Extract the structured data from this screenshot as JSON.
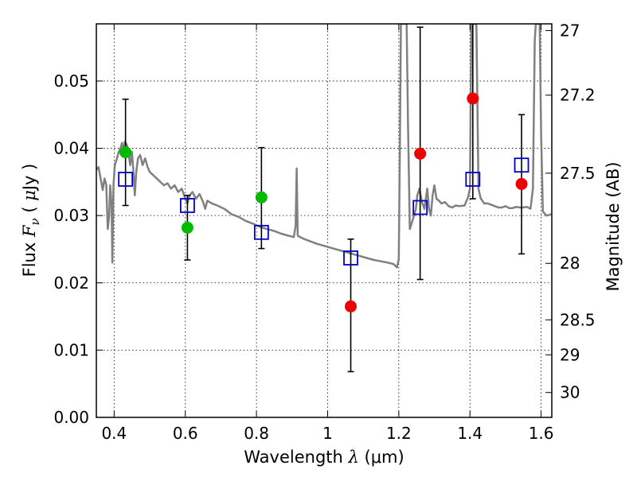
{
  "chart_data": {
    "type": "scatter",
    "title": "",
    "xlabel": "Wavelength  λ (μm)",
    "xlabel_parts": {
      "prefix": "Wavelength  ",
      "symbol": "λ",
      "unit": " (μm)"
    },
    "ylabel": "Flux  Fν  ( μJy )",
    "ylabel_parts": {
      "prefix": "Flux  ",
      "symbol": "F",
      "sub": "ν",
      "open": "  ( ",
      "mu": "μ",
      "unit": "Jy )"
    },
    "y2label": "Magnitude (AB)",
    "xlim": [
      0.35,
      1.63
    ],
    "ylim": [
      0.0,
      0.0585
    ],
    "grid": true,
    "xticks": [
      {
        "value": 0.4,
        "label": "0.4"
      },
      {
        "value": 0.6,
        "label": "0.6"
      },
      {
        "value": 0.8,
        "label": "0.8"
      },
      {
        "value": 1.0,
        "label": "1"
      },
      {
        "value": 1.2,
        "label": "1.2"
      },
      {
        "value": 1.4,
        "label": "1.4"
      },
      {
        "value": 1.6,
        "label": "1.6"
      }
    ],
    "yticks": [
      {
        "value": 0.0,
        "label": "0.00"
      },
      {
        "value": 0.01,
        "label": "0.01"
      },
      {
        "value": 0.02,
        "label": "0.02"
      },
      {
        "value": 0.03,
        "label": "0.03"
      },
      {
        "value": 0.04,
        "label": "0.04"
      },
      {
        "value": 0.05,
        "label": "0.05"
      }
    ],
    "y2ticks": [
      {
        "label": "27",
        "flux": 0.0575
      },
      {
        "label": "27.2",
        "flux": 0.0479
      },
      {
        "label": "27.5",
        "flux": 0.0363
      },
      {
        "label": "28",
        "flux": 0.0229
      },
      {
        "label": "28.5",
        "flux": 0.0145
      },
      {
        "label": "29",
        "flux": 0.0093
      },
      {
        "label": "30",
        "flux": 0.0037
      }
    ],
    "series": [
      {
        "name": "observed-green",
        "color": "#00bb00",
        "marker": "circle",
        "points": [
          {
            "x": 0.432,
            "y": 0.0394
          },
          {
            "x": 0.606,
            "y": 0.0282
          },
          {
            "x": 0.814,
            "y": 0.0327
          }
        ]
      },
      {
        "name": "observed-red",
        "color": "#ee0000",
        "marker": "circle",
        "points": [
          {
            "x": 1.065,
            "y": 0.0165
          },
          {
            "x": 1.26,
            "y": 0.0392
          },
          {
            "x": 1.408,
            "y": 0.0474
          },
          {
            "x": 1.545,
            "y": 0.0347
          }
        ]
      },
      {
        "name": "model-photometry",
        "color": "#0000cc",
        "marker": "square",
        "points": [
          {
            "x": 0.432,
            "y": 0.0354
          },
          {
            "x": 0.606,
            "y": 0.0315
          },
          {
            "x": 0.814,
            "y": 0.0275
          },
          {
            "x": 1.065,
            "y": 0.0237
          },
          {
            "x": 1.26,
            "y": 0.0312
          },
          {
            "x": 1.408,
            "y": 0.0354
          },
          {
            "x": 1.545,
            "y": 0.0375
          }
        ]
      }
    ],
    "errorbars": [
      {
        "x": 0.432,
        "ylow": 0.0315,
        "yhigh": 0.0473
      },
      {
        "x": 0.606,
        "ylow": 0.0234,
        "yhigh": 0.033
      },
      {
        "x": 0.814,
        "ylow": 0.0251,
        "yhigh": 0.0401
      },
      {
        "x": 1.065,
        "ylow": 0.0068,
        "yhigh": 0.0265
      },
      {
        "x": 1.26,
        "ylow": 0.0205,
        "yhigh": 0.058
      },
      {
        "x": 1.408,
        "ylow": 0.0325,
        "yhigh": 0.0585
      },
      {
        "x": 1.545,
        "ylow": 0.0243,
        "yhigh": 0.045
      }
    ],
    "template_spectrum": {
      "name": "sed-model",
      "color": "#808080",
      "points": [
        [
          0.35,
          0.0368
        ],
        [
          0.356,
          0.0372
        ],
        [
          0.362,
          0.0355
        ],
        [
          0.368,
          0.0338
        ],
        [
          0.373,
          0.0355
        ],
        [
          0.378,
          0.0345
        ],
        [
          0.382,
          0.028
        ],
        [
          0.386,
          0.03
        ],
        [
          0.389,
          0.0345
        ],
        [
          0.393,
          0.0315
        ],
        [
          0.395,
          0.023
        ],
        [
          0.398,
          0.0345
        ],
        [
          0.402,
          0.0375
        ],
        [
          0.408,
          0.0385
        ],
        [
          0.413,
          0.0395
        ],
        [
          0.418,
          0.04
        ],
        [
          0.422,
          0.0408
        ],
        [
          0.426,
          0.0395
        ],
        [
          0.43,
          0.041
        ],
        [
          0.436,
          0.0405
        ],
        [
          0.44,
          0.0395
        ],
        [
          0.445,
          0.0375
        ],
        [
          0.45,
          0.0395
        ],
        [
          0.455,
          0.036
        ],
        [
          0.458,
          0.033
        ],
        [
          0.462,
          0.0365
        ],
        [
          0.467,
          0.0385
        ],
        [
          0.473,
          0.039
        ],
        [
          0.48,
          0.0375
        ],
        [
          0.487,
          0.0385
        ],
        [
          0.494,
          0.0372
        ],
        [
          0.5,
          0.0365
        ],
        [
          0.51,
          0.036
        ],
        [
          0.52,
          0.0355
        ],
        [
          0.53,
          0.035
        ],
        [
          0.54,
          0.0345
        ],
        [
          0.55,
          0.0348
        ],
        [
          0.56,
          0.034
        ],
        [
          0.57,
          0.0345
        ],
        [
          0.58,
          0.0335
        ],
        [
          0.59,
          0.034
        ],
        [
          0.6,
          0.0325
        ],
        [
          0.606,
          0.0318
        ],
        [
          0.612,
          0.033
        ],
        [
          0.62,
          0.0335
        ],
        [
          0.63,
          0.0325
        ],
        [
          0.64,
          0.0332
        ],
        [
          0.65,
          0.032
        ],
        [
          0.656,
          0.031
        ],
        [
          0.662,
          0.0322
        ],
        [
          0.675,
          0.0318
        ],
        [
          0.69,
          0.0315
        ],
        [
          0.71,
          0.031
        ],
        [
          0.73,
          0.0302
        ],
        [
          0.75,
          0.0298
        ],
        [
          0.77,
          0.0292
        ],
        [
          0.79,
          0.0288
        ],
        [
          0.81,
          0.0283
        ],
        [
          0.83,
          0.028
        ],
        [
          0.85,
          0.0277
        ],
        [
          0.87,
          0.0273
        ],
        [
          0.89,
          0.027
        ],
        [
          0.905,
          0.0268
        ],
        [
          0.91,
          0.0285
        ],
        [
          0.913,
          0.037
        ],
        [
          0.916,
          0.027
        ],
        [
          0.93,
          0.0266
        ],
        [
          0.95,
          0.0262
        ],
        [
          0.97,
          0.0258
        ],
        [
          0.99,
          0.0255
        ],
        [
          1.01,
          0.0252
        ],
        [
          1.03,
          0.0249
        ],
        [
          1.05,
          0.0246
        ],
        [
          1.07,
          0.0243
        ],
        [
          1.09,
          0.024
        ],
        [
          1.11,
          0.0237
        ],
        [
          1.13,
          0.0234
        ],
        [
          1.15,
          0.0232
        ],
        [
          1.17,
          0.023
        ],
        [
          1.185,
          0.0228
        ],
        [
          1.195,
          0.0223
        ],
        [
          1.2,
          0.0235
        ],
        [
          1.203,
          0.04
        ],
        [
          1.206,
          0.0585
        ],
        [
          1.212,
          0.0585
        ],
        [
          1.216,
          0.0585
        ],
        [
          1.222,
          0.0585
        ],
        [
          1.226,
          0.043
        ],
        [
          1.231,
          0.028
        ],
        [
          1.24,
          0.0295
        ],
        [
          1.248,
          0.031
        ],
        [
          1.252,
          0.033
        ],
        [
          1.258,
          0.034
        ],
        [
          1.265,
          0.032
        ],
        [
          1.272,
          0.031
        ],
        [
          1.28,
          0.034
        ],
        [
          1.285,
          0.031
        ],
        [
          1.29,
          0.03
        ],
        [
          1.295,
          0.033
        ],
        [
          1.3,
          0.0345
        ],
        [
          1.306,
          0.0325
        ],
        [
          1.313,
          0.0322
        ],
        [
          1.32,
          0.0318
        ],
        [
          1.33,
          0.032
        ],
        [
          1.34,
          0.0314
        ],
        [
          1.35,
          0.0312
        ],
        [
          1.36,
          0.0315
        ],
        [
          1.37,
          0.0314
        ],
        [
          1.385,
          0.0315
        ],
        [
          1.395,
          0.0328
        ],
        [
          1.4,
          0.034
        ],
        [
          1.404,
          0.0585
        ],
        [
          1.418,
          0.0585
        ],
        [
          1.424,
          0.034
        ],
        [
          1.43,
          0.0326
        ],
        [
          1.44,
          0.0318
        ],
        [
          1.45,
          0.0318
        ],
        [
          1.46,
          0.0316
        ],
        [
          1.47,
          0.0314
        ],
        [
          1.48,
          0.0312
        ],
        [
          1.49,
          0.0312
        ],
        [
          1.5,
          0.0314
        ],
        [
          1.51,
          0.0311
        ],
        [
          1.52,
          0.0311
        ],
        [
          1.53,
          0.0313
        ],
        [
          1.54,
          0.0312
        ],
        [
          1.55,
          0.0312
        ],
        [
          1.56,
          0.0313
        ],
        [
          1.57,
          0.031
        ],
        [
          1.577,
          0.034
        ],
        [
          1.582,
          0.056
        ],
        [
          1.585,
          0.0585
        ],
        [
          1.596,
          0.0585
        ],
        [
          1.6,
          0.042
        ],
        [
          1.605,
          0.0306
        ],
        [
          1.615,
          0.03
        ],
        [
          1.63,
          0.0302
        ]
      ]
    }
  }
}
